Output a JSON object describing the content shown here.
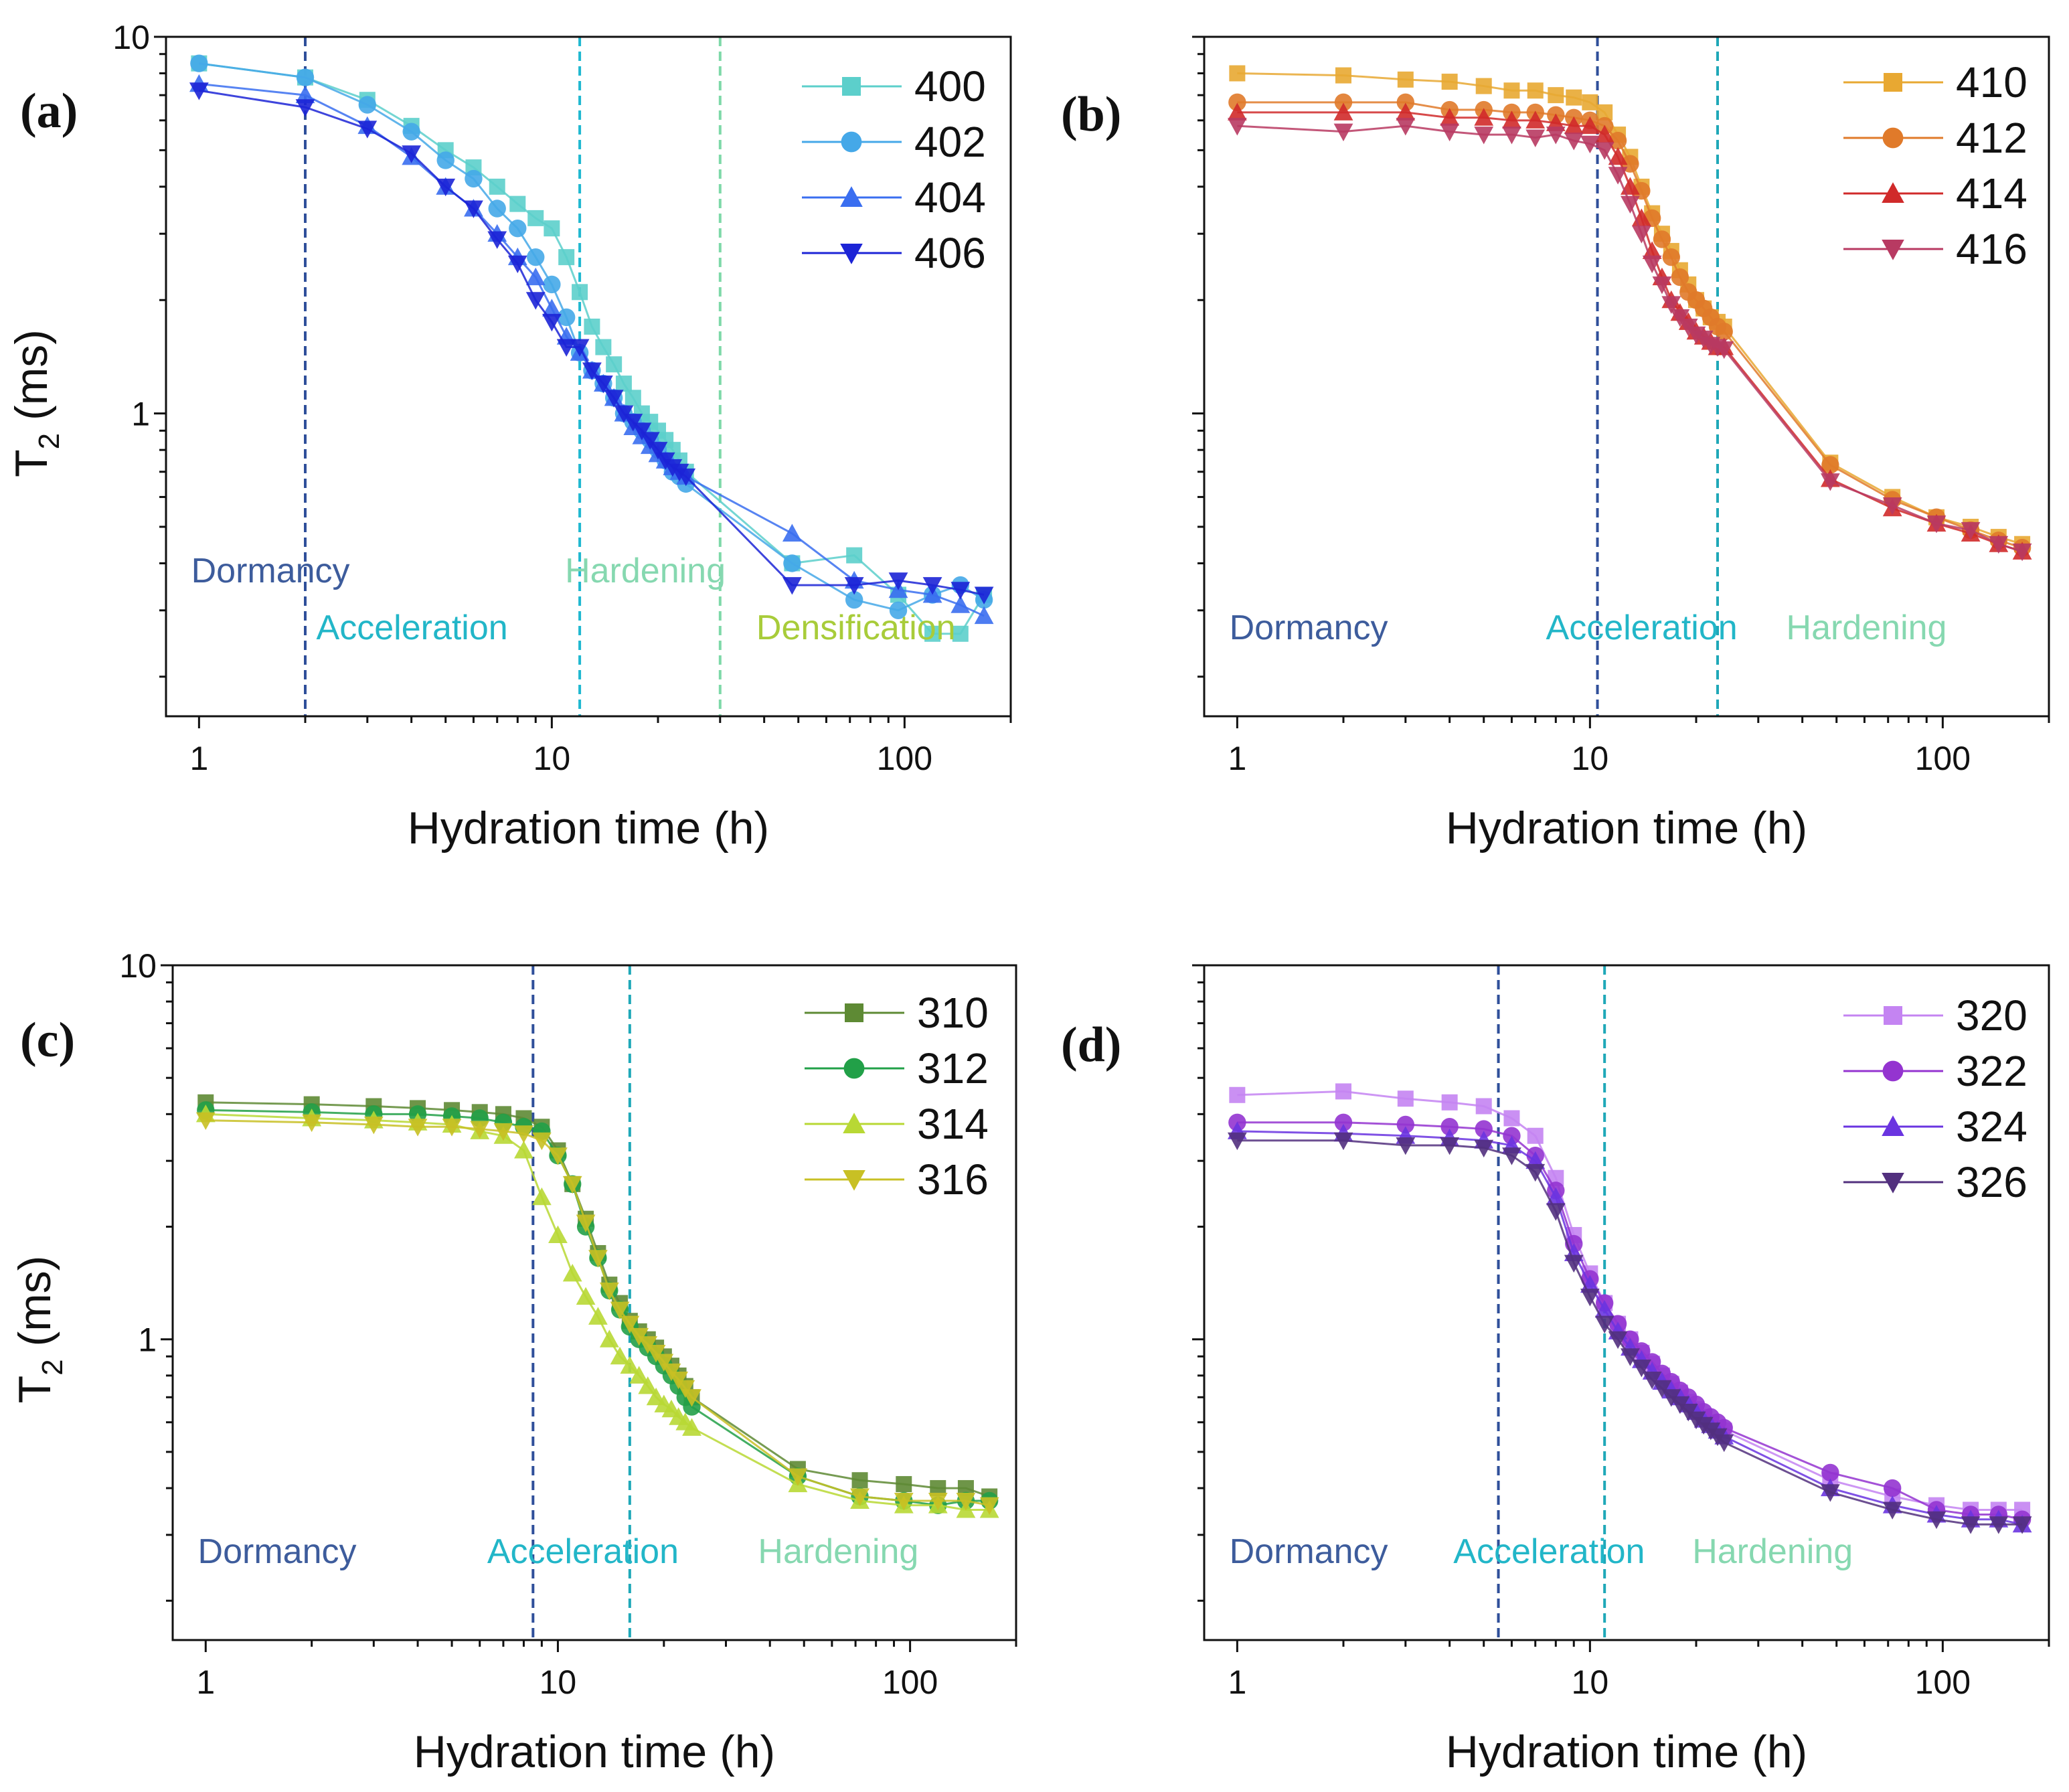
{
  "chart_data": [
    {
      "type": "line",
      "panel_label": "(a)",
      "xlabel": "Hydration time (h)",
      "ylabel": "T",
      "ylabel_sub": "2",
      "ylabel_unit": " (ms)",
      "xscale": "log",
      "yscale": "log",
      "xlim": [
        0.806,
        200
      ],
      "ylim": [
        0.157,
        10
      ],
      "x_ticks": [
        {
          "value": 1,
          "label": "1"
        },
        {
          "value": 10,
          "label": "10"
        },
        {
          "value": 100,
          "label": "100"
        }
      ],
      "y_ticks": [
        {
          "value": 1,
          "label": "1"
        },
        {
          "value": 10,
          "label": "10"
        }
      ],
      "legend_position": "top-right",
      "x": [
        1,
        2,
        3,
        4,
        5,
        6,
        7,
        8,
        9,
        10,
        11,
        12,
        13,
        14,
        15,
        16,
        17,
        18,
        19,
        20,
        21,
        22,
        23,
        24,
        48,
        72,
        96,
        120,
        144,
        168
      ],
      "series": [
        {
          "name": "400",
          "marker": "square",
          "color": "#5ccfcb",
          "values": [
            8.5,
            7.8,
            6.8,
            5.8,
            5.0,
            4.5,
            4.0,
            3.6,
            3.3,
            3.1,
            2.6,
            2.1,
            1.7,
            1.5,
            1.35,
            1.2,
            1.1,
            1.0,
            0.95,
            0.9,
            0.85,
            0.8,
            0.75,
            0.7,
            0.4,
            0.42,
            0.33,
            0.26,
            0.26,
            0.33
          ]
        },
        {
          "name": "402",
          "marker": "circle",
          "color": "#45a8e8",
          "values": [
            8.5,
            7.8,
            6.6,
            5.6,
            4.7,
            4.2,
            3.5,
            3.1,
            2.6,
            2.2,
            1.8,
            1.45,
            1.3,
            1.2,
            1.1,
            1.0,
            0.95,
            0.9,
            0.85,
            0.8,
            0.75,
            0.7,
            0.68,
            0.65,
            0.4,
            0.32,
            0.3,
            0.33,
            0.35,
            0.32
          ]
        },
        {
          "name": "404",
          "marker": "triangle-up",
          "color": "#3a6ef0",
          "values": [
            7.5,
            7.0,
            5.8,
            4.8,
            4.0,
            3.5,
            3.0,
            2.6,
            2.3,
            1.9,
            1.6,
            1.45,
            1.3,
            1.2,
            1.1,
            1.0,
            0.92,
            0.87,
            0.82,
            0.78,
            0.75,
            0.72,
            0.7,
            0.68,
            0.48,
            0.36,
            0.34,
            0.33,
            0.31,
            0.29
          ]
        },
        {
          "name": "406",
          "marker": "triangle-down",
          "color": "#1c24d6",
          "values": [
            7.2,
            6.5,
            5.7,
            4.9,
            4.0,
            3.5,
            2.9,
            2.5,
            2.0,
            1.75,
            1.5,
            1.5,
            1.3,
            1.2,
            1.1,
            1.0,
            0.95,
            0.9,
            0.85,
            0.8,
            0.75,
            0.72,
            0.7,
            0.68,
            0.35,
            0.35,
            0.36,
            0.35,
            0.34,
            0.33
          ]
        }
      ],
      "vlines": [
        {
          "x": 2,
          "color": "#2f4f9a"
        },
        {
          "x": 12,
          "color": "#1fb8d0"
        },
        {
          "x": 30,
          "color": "#7ed9a8"
        }
      ],
      "phases": [
        {
          "text": "Dormancy",
          "color": "#3d5c9c",
          "at_x": 0.95,
          "row": 0
        },
        {
          "text": "Acceleration",
          "color": "#22b6c8",
          "at_x": 2.15,
          "row": 1
        },
        {
          "text": "Hardening",
          "color": "#86d8b0",
          "at_x": 10.9,
          "row": 0
        },
        {
          "text": "Densification",
          "color": "#a8cc3a",
          "at_x": 38,
          "row": 1
        }
      ]
    },
    {
      "type": "line",
      "panel_label": "(b)",
      "xlabel": "Hydration time (h)",
      "xscale": "log",
      "yscale": "log",
      "xlim": [
        0.806,
        200
      ],
      "ylim": [
        0.157,
        10
      ],
      "x_ticks": [
        {
          "value": 1,
          "label": "1"
        },
        {
          "value": 10,
          "label": "10"
        },
        {
          "value": 100,
          "label": "100"
        }
      ],
      "y_ticks": [],
      "legend_position": "top-right",
      "x": [
        1,
        2,
        3,
        4,
        5,
        6,
        7,
        8,
        9,
        10,
        11,
        12,
        13,
        14,
        15,
        16,
        17,
        18,
        19,
        20,
        21,
        22,
        23,
        24,
        48,
        72,
        96,
        120,
        144,
        168
      ],
      "series": [
        {
          "name": "410",
          "marker": "square",
          "color": "#e8a832",
          "values": [
            8.0,
            7.9,
            7.7,
            7.6,
            7.4,
            7.2,
            7.2,
            7.0,
            6.9,
            6.7,
            6.3,
            5.5,
            4.8,
            4.0,
            3.4,
            3.0,
            2.7,
            2.4,
            2.2,
            2.0,
            1.9,
            1.8,
            1.75,
            1.7,
            0.74,
            0.6,
            0.53,
            0.5,
            0.47,
            0.45
          ]
        },
        {
          "name": "412",
          "marker": "circle",
          "color": "#e07a2a",
          "values": [
            6.7,
            6.7,
            6.7,
            6.4,
            6.4,
            6.3,
            6.3,
            6.2,
            6.1,
            6.0,
            5.8,
            5.3,
            4.6,
            3.9,
            3.3,
            2.9,
            2.6,
            2.3,
            2.1,
            2.0,
            1.9,
            1.8,
            1.7,
            1.65,
            0.73,
            0.59,
            0.53,
            0.49,
            0.46,
            0.44
          ]
        },
        {
          "name": "414",
          "marker": "triangle-up",
          "color": "#d02a2a",
          "values": [
            6.3,
            6.3,
            6.3,
            6.1,
            6.1,
            6.0,
            6.0,
            5.9,
            5.8,
            5.8,
            5.5,
            4.8,
            4.0,
            3.3,
            2.7,
            2.3,
            2.0,
            1.85,
            1.75,
            1.65,
            1.6,
            1.55,
            1.5,
            1.5,
            0.67,
            0.56,
            0.51,
            0.48,
            0.45,
            0.43
          ]
        },
        {
          "name": "416",
          "marker": "triangle-down",
          "color": "#b83a62",
          "values": [
            5.8,
            5.6,
            5.8,
            5.6,
            5.5,
            5.5,
            5.4,
            5.5,
            5.3,
            5.2,
            5.0,
            4.3,
            3.6,
            3.0,
            2.5,
            2.2,
            1.95,
            1.8,
            1.7,
            1.62,
            1.58,
            1.52,
            1.5,
            1.48,
            0.66,
            0.57,
            0.51,
            0.49,
            0.45,
            0.43
          ]
        }
      ],
      "vlines": [
        {
          "x": 10.5,
          "color": "#2f4f9a"
        },
        {
          "x": 23,
          "color": "#1fa8b8"
        }
      ],
      "phases": [
        {
          "text": "Dormancy",
          "color": "#3d5c9c",
          "at_x": 0.95,
          "row": 1
        },
        {
          "text": "Acceleration",
          "color": "#22b6c8",
          "at_x": 7.5,
          "row": 1
        },
        {
          "text": "Hardening",
          "color": "#86d8b0",
          "at_x": 36,
          "row": 1
        }
      ]
    },
    {
      "type": "line",
      "panel_label": "(c)",
      "xlabel": "Hydration time (h)",
      "ylabel": "T",
      "ylabel_sub": "2",
      "ylabel_unit": " (ms)",
      "xscale": "log",
      "yscale": "log",
      "xlim": [
        0.806,
        200
      ],
      "ylim": [
        0.157,
        10
      ],
      "x_ticks": [
        {
          "value": 1,
          "label": "1"
        },
        {
          "value": 10,
          "label": "10"
        },
        {
          "value": 100,
          "label": "100"
        }
      ],
      "y_ticks": [
        {
          "value": 1,
          "label": "1"
        },
        {
          "value": 10,
          "label": "10"
        }
      ],
      "legend_position": "top-right",
      "x": [
        1,
        2,
        3,
        4,
        5,
        6,
        7,
        8,
        9,
        10,
        11,
        12,
        13,
        14,
        15,
        16,
        17,
        18,
        19,
        20,
        21,
        22,
        23,
        24,
        48,
        72,
        96,
        120,
        144,
        168
      ],
      "series": [
        {
          "name": "310",
          "marker": "square",
          "color": "#5e8a34",
          "values": [
            4.3,
            4.25,
            4.2,
            4.15,
            4.1,
            4.05,
            4.0,
            3.9,
            3.7,
            3.2,
            2.6,
            2.1,
            1.7,
            1.4,
            1.25,
            1.12,
            1.05,
            1.0,
            0.95,
            0.9,
            0.85,
            0.8,
            0.75,
            0.7,
            0.45,
            0.42,
            0.41,
            0.4,
            0.4,
            0.38
          ]
        },
        {
          "name": "312",
          "marker": "circle",
          "color": "#22a048",
          "values": [
            4.1,
            4.05,
            4.0,
            4.0,
            3.95,
            3.9,
            3.8,
            3.7,
            3.6,
            3.1,
            2.6,
            2.0,
            1.65,
            1.35,
            1.2,
            1.08,
            1.0,
            0.95,
            0.9,
            0.85,
            0.8,
            0.75,
            0.7,
            0.66,
            0.43,
            0.38,
            0.37,
            0.36,
            0.37,
            0.37
          ]
        },
        {
          "name": "314",
          "marker": "triangle-up",
          "color": "#b8d834",
          "values": [
            4.0,
            3.9,
            3.85,
            3.8,
            3.75,
            3.6,
            3.5,
            3.2,
            2.4,
            1.9,
            1.5,
            1.3,
            1.15,
            1.0,
            0.9,
            0.85,
            0.8,
            0.75,
            0.7,
            0.67,
            0.65,
            0.62,
            0.6,
            0.58,
            0.41,
            0.37,
            0.36,
            0.36,
            0.35,
            0.35
          ]
        },
        {
          "name": "316",
          "marker": "triangle-down",
          "color": "#c8c024",
          "values": [
            3.85,
            3.8,
            3.75,
            3.7,
            3.7,
            3.65,
            3.6,
            3.55,
            3.4,
            3.1,
            2.6,
            2.05,
            1.65,
            1.35,
            1.2,
            1.1,
            1.02,
            0.97,
            0.92,
            0.87,
            0.82,
            0.78,
            0.74,
            0.7,
            0.43,
            0.38,
            0.37,
            0.37,
            0.37,
            0.36
          ]
        }
      ],
      "vlines": [
        {
          "x": 8.5,
          "color": "#2f4f9a"
        },
        {
          "x": 16,
          "color": "#1fa8b8"
        }
      ],
      "phases": [
        {
          "text": "Dormancy",
          "color": "#3d5c9c",
          "at_x": 0.95,
          "row": 1
        },
        {
          "text": "Acceleration",
          "color": "#22b6c8",
          "at_x": 6.3,
          "row": 1
        },
        {
          "text": "Hardening",
          "color": "#86d8b0",
          "at_x": 37,
          "row": 1
        }
      ]
    },
    {
      "type": "line",
      "panel_label": "(d)",
      "xlabel": "Hydration time (h)",
      "xscale": "log",
      "yscale": "log",
      "xlim": [
        0.806,
        200
      ],
      "ylim": [
        0.157,
        10
      ],
      "x_ticks": [
        {
          "value": 1,
          "label": "1"
        },
        {
          "value": 10,
          "label": "10"
        },
        {
          "value": 100,
          "label": "100"
        }
      ],
      "y_ticks": [],
      "legend_position": "top-right",
      "x": [
        1,
        2,
        3,
        4,
        5,
        6,
        7,
        8,
        9,
        10,
        11,
        12,
        13,
        14,
        15,
        16,
        17,
        18,
        19,
        20,
        21,
        22,
        23,
        24,
        48,
        72,
        96,
        120,
        144,
        168
      ],
      "series": [
        {
          "name": "320",
          "marker": "square",
          "color": "#c484f2",
          "values": [
            4.5,
            4.6,
            4.4,
            4.3,
            4.2,
            3.9,
            3.5,
            2.7,
            1.9,
            1.5,
            1.25,
            1.1,
            1.0,
            0.92,
            0.86,
            0.8,
            0.76,
            0.72,
            0.68,
            0.65,
            0.62,
            0.6,
            0.58,
            0.57,
            0.42,
            0.38,
            0.36,
            0.35,
            0.35,
            0.35
          ]
        },
        {
          "name": "322",
          "marker": "circle",
          "color": "#9434d0",
          "values": [
            3.8,
            3.8,
            3.75,
            3.7,
            3.65,
            3.5,
            3.1,
            2.5,
            1.8,
            1.45,
            1.25,
            1.1,
            1.0,
            0.93,
            0.87,
            0.81,
            0.77,
            0.73,
            0.7,
            0.67,
            0.64,
            0.62,
            0.6,
            0.58,
            0.44,
            0.4,
            0.35,
            0.34,
            0.34,
            0.33
          ]
        },
        {
          "name": "324",
          "marker": "triangle-up",
          "color": "#6a34e0",
          "values": [
            3.6,
            3.55,
            3.5,
            3.45,
            3.4,
            3.3,
            3.0,
            2.4,
            1.7,
            1.4,
            1.2,
            1.05,
            0.95,
            0.88,
            0.82,
            0.77,
            0.73,
            0.7,
            0.67,
            0.64,
            0.61,
            0.59,
            0.57,
            0.55,
            0.4,
            0.36,
            0.34,
            0.33,
            0.33,
            0.32
          ]
        },
        {
          "name": "326",
          "marker": "triangle-down",
          "color": "#52307e",
          "values": [
            3.4,
            3.4,
            3.3,
            3.3,
            3.25,
            3.1,
            2.8,
            2.2,
            1.6,
            1.3,
            1.1,
            1.0,
            0.9,
            0.84,
            0.78,
            0.74,
            0.7,
            0.67,
            0.64,
            0.61,
            0.59,
            0.57,
            0.55,
            0.53,
            0.39,
            0.35,
            0.33,
            0.32,
            0.32,
            0.32
          ]
        }
      ],
      "vlines": [
        {
          "x": 5.5,
          "color": "#2f4f9a"
        },
        {
          "x": 11,
          "color": "#1fa8b8"
        }
      ],
      "phases": [
        {
          "text": "Dormancy",
          "color": "#3d5c9c",
          "at_x": 0.95,
          "row": 1
        },
        {
          "text": "Acceleration",
          "color": "#22b6c8",
          "at_x": 4.1,
          "row": 1
        },
        {
          "text": "Hardening",
          "color": "#86d8b0",
          "at_x": 19.5,
          "row": 1
        }
      ]
    }
  ]
}
